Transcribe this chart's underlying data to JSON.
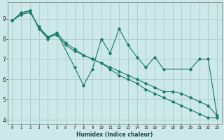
{
  "xlabel": "Humidex (Indice chaleur)",
  "bg_color": "#cce8e8",
  "grid_color": "#aacccc",
  "line_color": "#1a7a6a",
  "xlim": [
    -0.5,
    23.5
  ],
  "ylim": [
    3.8,
    9.8
  ],
  "yticks": [
    4,
    5,
    6,
    7,
    8,
    9
  ],
  "xtick_labels": [
    "0",
    "1",
    "2",
    "3",
    "4",
    "5",
    "6",
    "7",
    "8",
    "9",
    "10",
    "11",
    "12",
    "13",
    "14",
    "15",
    "16",
    "17",
    "18",
    "19",
    "20",
    "21",
    "22",
    "23"
  ],
  "series": [
    {
      "x": [
        0,
        1,
        2,
        3,
        4,
        5,
        7,
        8,
        9,
        10,
        11,
        12,
        13,
        14,
        15,
        16,
        17,
        20,
        21,
        22,
        23
      ],
      "y": [
        8.9,
        9.3,
        9.4,
        8.5,
        8.0,
        8.3,
        6.6,
        5.7,
        6.5,
        8.0,
        7.3,
        8.5,
        7.7,
        7.1,
        6.6,
        7.1,
        6.5,
        6.5,
        7.0,
        7.0,
        4.2
      ]
    },
    {
      "x": [
        0,
        1,
        2,
        3,
        4,
        5,
        6,
        7,
        8,
        9,
        10,
        11,
        12,
        13,
        14,
        15,
        16,
        17,
        18,
        19,
        20,
        21,
        22,
        23
      ],
      "y": [
        8.9,
        9.2,
        9.3,
        8.6,
        8.1,
        8.2,
        7.7,
        7.4,
        7.2,
        7.0,
        6.8,
        6.6,
        6.4,
        6.2,
        6.0,
        5.8,
        5.6,
        5.4,
        5.4,
        5.3,
        5.1,
        4.9,
        4.7,
        4.2
      ]
    },
    {
      "x": [
        0,
        1,
        2,
        3,
        4,
        5,
        6,
        7,
        8,
        9,
        10,
        11,
        12,
        13,
        14,
        15,
        16,
        17,
        18,
        19,
        20,
        21,
        22,
        23
      ],
      "y": [
        8.9,
        9.2,
        9.4,
        8.5,
        8.1,
        8.3,
        7.8,
        7.5,
        7.2,
        7.0,
        6.8,
        6.5,
        6.2,
        6.0,
        5.8,
        5.5,
        5.3,
        5.1,
        4.9,
        4.7,
        4.5,
        4.3,
        4.1,
        4.1
      ]
    }
  ]
}
